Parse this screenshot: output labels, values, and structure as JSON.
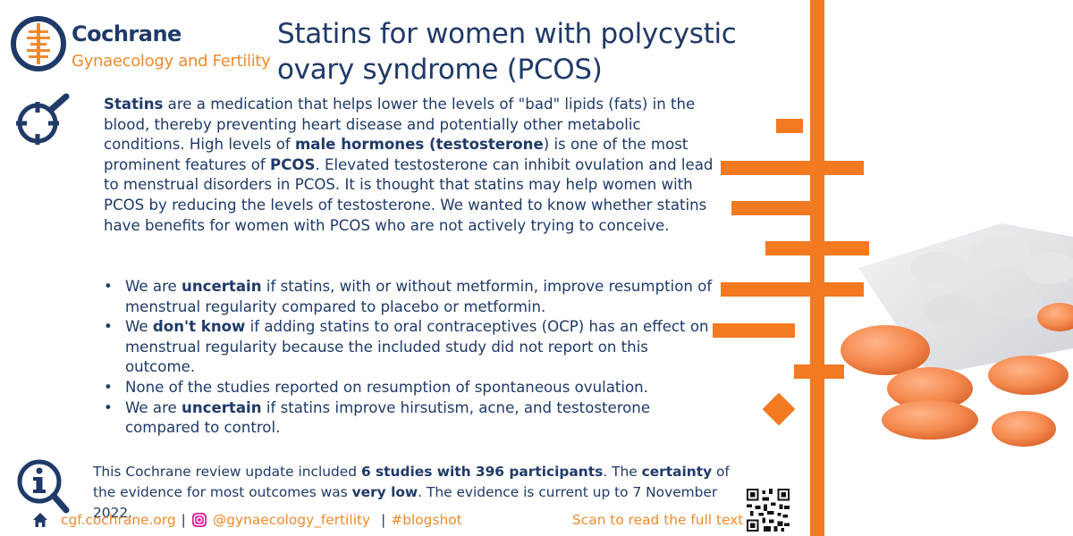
{
  "brand": {
    "name": "Cochrane",
    "group": "Gynaecology and Fertility"
  },
  "title": "Statins for women with polycystic ovary syndrome (PCOS)",
  "intro": {
    "p1_b": "Statins",
    "p1": " are a medication that helps lower the levels of \"bad\" lipids (fats) in the blood, thereby preventing heart disease and potentially other metabolic conditions. High levels of ",
    "p2_b": "male hormones (testosterone",
    "p2": ") is one of the most prominent features of ",
    "p3_b": "PCOS",
    "p3": ". Elevated testosterone can inhibit ovulation and lead to menstrual disorders in PCOS. It is thought that statins may help women with PCOS by reducing the levels of testosterone. We wanted to know whether statins have benefits for women with PCOS who are not actively trying to conceive."
  },
  "bullets": [
    {
      "pre": "We are ",
      "b": "uncertain",
      "post": " if statins, with or without metformin, improve resumption of menstrual regularity compared to placebo or metformin."
    },
    {
      "pre": "We ",
      "b": "don't know",
      "post": " if adding statins to oral contraceptives (OCP) has an effect on menstrual regularity because the included study did not report on this outcome."
    },
    {
      "pre": "None of the studies reported on resumption of spontaneous ovulation.",
      "b": "",
      "post": ""
    },
    {
      "pre": "We are ",
      "b": "uncertain",
      "post": " if statins improve hirsutism, acne, and testosterone compared to control."
    }
  ],
  "bullet_char": "•",
  "summary": {
    "s1": "This Cochrane review update included ",
    "s1_b": "6 studies with 396 participants",
    "s2": ". The ",
    "s2_b": "certainty",
    "s3": " of the evidence for most outcomes was ",
    "s3_b": "very low",
    "s4": ". The evidence is current up to 7 November 2022."
  },
  "footer": {
    "website": "cgf.cochrane.org",
    "sep1": "|",
    "instagram": "@gynaecology_fertility",
    "sep2": "|",
    "hashtag": "#blogshot",
    "scan": "Scan to read the full text"
  },
  "colors": {
    "navy": "#1f3a68",
    "orange": "#f37a21"
  },
  "icons": [
    "cochrane-logo-icon",
    "magnifier-crosshair-icon",
    "info-magnifier-icon",
    "home-icon",
    "instagram-icon",
    "qr-code-icon"
  ]
}
